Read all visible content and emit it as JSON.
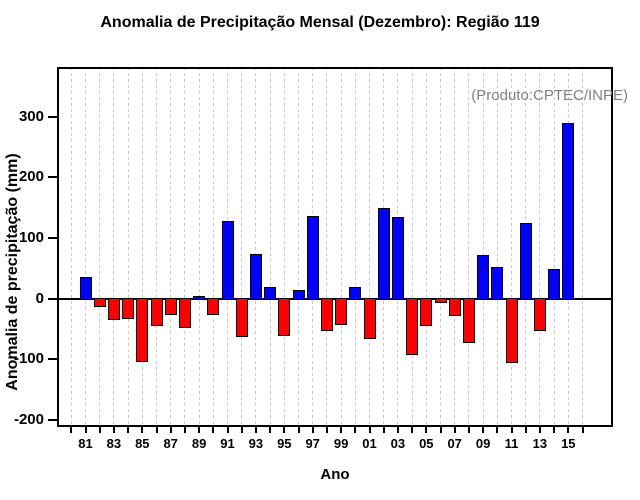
{
  "chart_data": {
    "type": "bar",
    "title": "Anomalia de Precipitação Mensal (Dezembro): Região 119",
    "annotation": "(Produto:CPTEC/INPE)",
    "xlabel": "Ano",
    "ylabel": "Anomalia de precipitação (mm)",
    "legend_position": "none",
    "grid": "vertical-dashed-per-year",
    "grid_color": "#c8c8c8",
    "positive_color": "#0000ff",
    "negative_color": "#ff0000",
    "bar_outline_color": "#000000",
    "annotation_color": "#808080",
    "ylim": [
      -212,
      382
    ],
    "yticks": [
      -200,
      -100,
      0,
      100,
      200,
      300
    ],
    "x_axis_year_range": [
      1980,
      2016
    ],
    "x_tick_labels": [
      "81",
      "83",
      "85",
      "87",
      "89",
      "91",
      "93",
      "95",
      "97",
      "99",
      "01",
      "03",
      "05",
      "07",
      "09",
      "11",
      "13",
      "15"
    ],
    "years": [
      1981,
      1982,
      1983,
      1984,
      1985,
      1986,
      1987,
      1988,
      1989,
      1990,
      1991,
      1992,
      1993,
      1994,
      1995,
      1996,
      1997,
      1998,
      1999,
      2000,
      2001,
      2002,
      2003,
      2004,
      2005,
      2006,
      2007,
      2008,
      2009,
      2010,
      2011,
      2012,
      2013,
      2014,
      2015
    ],
    "values": [
      36,
      -14,
      -36,
      -33,
      -104,
      -46,
      -27,
      -48,
      4,
      -27,
      128,
      -64,
      73,
      19,
      -62,
      14,
      136,
      -54,
      -44,
      19,
      -66,
      150,
      134,
      -94,
      -46,
      -8,
      -29,
      -74,
      72,
      52,
      -106,
      124,
      -53,
      48,
      290
    ]
  }
}
